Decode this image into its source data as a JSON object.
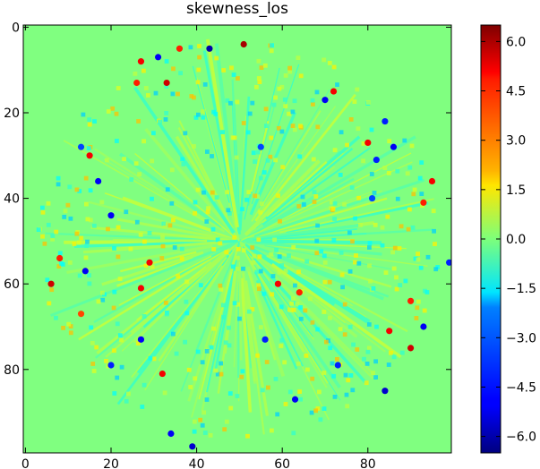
{
  "chart_data": {
    "type": "heatmap",
    "title": "skewness_los",
    "xlabel": "",
    "ylabel": "",
    "image_shape": [
      100,
      100
    ],
    "xlim": [
      -0.5,
      99.5
    ],
    "ylim": [
      99.5,
      -0.5
    ],
    "x_ticks": [
      0,
      20,
      40,
      60,
      80
    ],
    "y_ticks": [
      0,
      20,
      40,
      60,
      80
    ],
    "y_inverted": true,
    "colormap": "jet",
    "background_value": 0.0,
    "clim": [
      -6.5,
      6.5
    ],
    "colorbar_ticks": [
      6.0,
      4.5,
      3.0,
      1.5,
      0.0,
      -1.5,
      -3.0,
      -4.5,
      -6.0
    ],
    "colorbar_tick_labels": [
      "6.0",
      "4.5",
      "3.0",
      "1.5",
      "0.0",
      "−1.5",
      "−3.0",
      "−4.5",
      "−6.0"
    ],
    "structure": "circular region centred near (50, 50) with radius about 48, radial streak pattern of small positive/negative values; values outside the circle are 0",
    "notable_points": [
      {
        "x": 51,
        "y": 4,
        "value": 6.0
      },
      {
        "x": 43,
        "y": 5,
        "value": -6.0
      },
      {
        "x": 36,
        "y": 5,
        "value": 4.5
      },
      {
        "x": 31,
        "y": 7,
        "value": -5.0
      },
      {
        "x": 27,
        "y": 8,
        "value": 5.0
      },
      {
        "x": 26,
        "y": 13,
        "value": 4.5
      },
      {
        "x": 33,
        "y": 13,
        "value": 5.5
      },
      {
        "x": 72,
        "y": 15,
        "value": 5.0
      },
      {
        "x": 70,
        "y": 17,
        "value": -5.0
      },
      {
        "x": 84,
        "y": 22,
        "value": -4.5
      },
      {
        "x": 80,
        "y": 27,
        "value": 5.0
      },
      {
        "x": 86,
        "y": 28,
        "value": -5.0
      },
      {
        "x": 82,
        "y": 31,
        "value": -4.5
      },
      {
        "x": 55,
        "y": 28,
        "value": -4.0
      },
      {
        "x": 15,
        "y": 30,
        "value": 5.0
      },
      {
        "x": 13,
        "y": 28,
        "value": -4.0
      },
      {
        "x": 17,
        "y": 36,
        "value": -5.0
      },
      {
        "x": 95,
        "y": 36,
        "value": 5.0
      },
      {
        "x": 93,
        "y": 41,
        "value": 4.5
      },
      {
        "x": 81,
        "y": 40,
        "value": -4.0
      },
      {
        "x": 20,
        "y": 44,
        "value": -5.0
      },
      {
        "x": 8,
        "y": 54,
        "value": 4.5
      },
      {
        "x": 14,
        "y": 57,
        "value": -5.0
      },
      {
        "x": 29,
        "y": 55,
        "value": 5.0
      },
      {
        "x": 99,
        "y": 55,
        "value": -4.5
      },
      {
        "x": 6,
        "y": 60,
        "value": 5.5
      },
      {
        "x": 27,
        "y": 61,
        "value": 5.0
      },
      {
        "x": 59,
        "y": 60,
        "value": 5.0
      },
      {
        "x": 64,
        "y": 62,
        "value": 4.5
      },
      {
        "x": 13,
        "y": 67,
        "value": 4.0
      },
      {
        "x": 90,
        "y": 64,
        "value": 4.5
      },
      {
        "x": 93,
        "y": 70,
        "value": -5.0
      },
      {
        "x": 85,
        "y": 71,
        "value": 5.0
      },
      {
        "x": 27,
        "y": 73,
        "value": -5.0
      },
      {
        "x": 56,
        "y": 73,
        "value": -4.5
      },
      {
        "x": 90,
        "y": 75,
        "value": 5.5
      },
      {
        "x": 20,
        "y": 79,
        "value": -4.5
      },
      {
        "x": 32,
        "y": 81,
        "value": 5.0
      },
      {
        "x": 73,
        "y": 79,
        "value": -4.5
      },
      {
        "x": 84,
        "y": 85,
        "value": -5.5
      },
      {
        "x": 63,
        "y": 87,
        "value": -5.0
      },
      {
        "x": 34,
        "y": 95,
        "value": -5.0
      },
      {
        "x": 39,
        "y": 98,
        "value": -5.5
      }
    ]
  }
}
